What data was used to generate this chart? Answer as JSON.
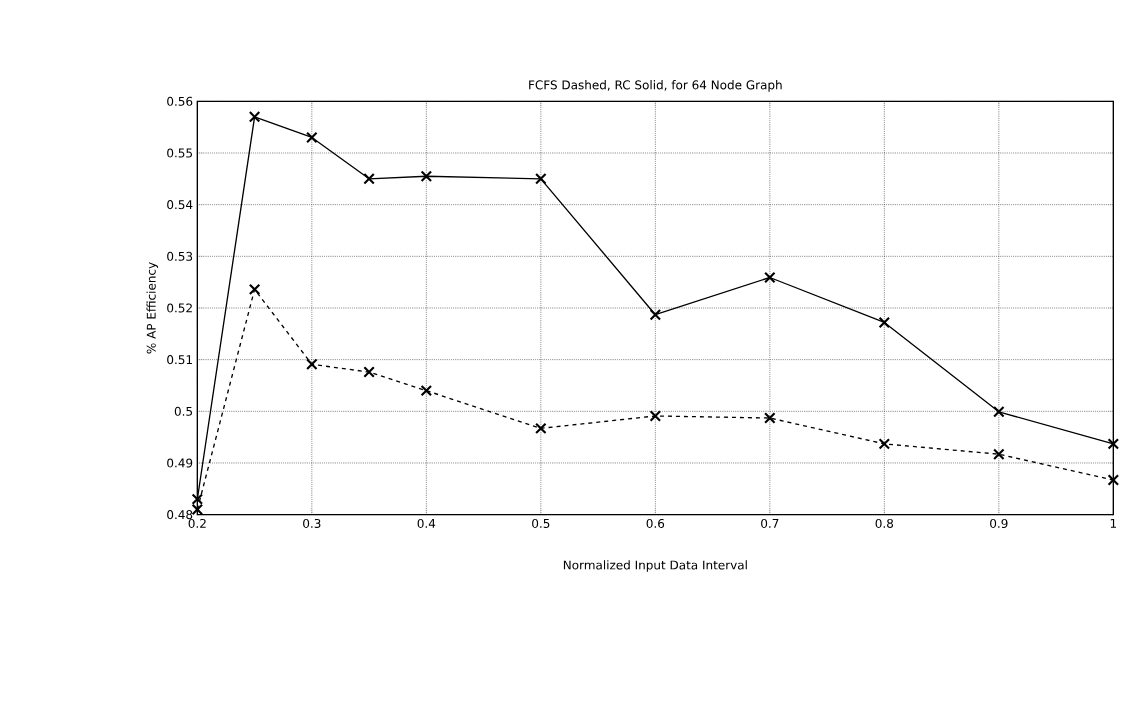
{
  "chart_data": {
    "type": "line",
    "title": "FCFS Dashed, RC Solid, for 64 Node Graph",
    "xlabel": "Normalized Input Data Interval",
    "ylabel": "% AP Efficiency",
    "x": [
      0.2,
      0.25,
      0.3,
      0.35,
      0.4,
      0.5,
      0.6,
      0.7,
      0.8,
      0.9,
      1
    ],
    "series": [
      {
        "color": "#000000",
        "line_style": "solid",
        "values": [
          0.483,
          0.557,
          0.553,
          0.545,
          0.5455,
          0.545,
          0.5187,
          0.5259,
          0.5172,
          0.4999,
          0.4937
        ]
      },
      {
        "color": "#000000",
        "line_style": "dashed",
        "values": [
          0.481,
          0.5236,
          0.5091,
          0.5076,
          0.504,
          0.4967,
          0.4991,
          0.4987,
          0.4937,
          0.4917,
          0.4867
        ]
      }
    ],
    "xlim": [
      0.2,
      1
    ],
    "ylim": [
      0.48,
      0.56
    ],
    "xticks": [
      0.2,
      0.3,
      0.4,
      0.5,
      0.6,
      0.7,
      0.8,
      0.9,
      1
    ],
    "yticks": [
      0.48,
      0.49,
      0.5,
      0.51,
      0.52,
      0.53,
      0.54,
      0.55,
      0.56
    ],
    "grid": true,
    "marker": "cross"
  }
}
